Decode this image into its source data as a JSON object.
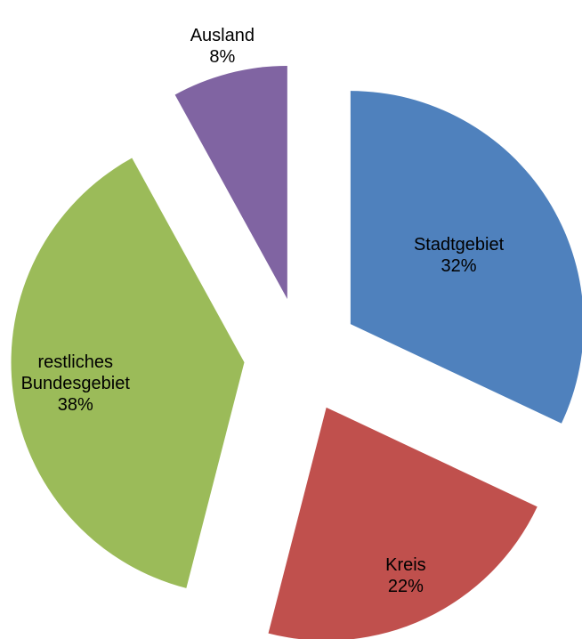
{
  "chart_data": {
    "type": "pie",
    "categories": [
      "Stadtgebiet",
      "Kreis",
      "restliches Bundesgebiet",
      "Ausland"
    ],
    "values": [
      32,
      22,
      38,
      8
    ],
    "value_labels": [
      "32%",
      "22%",
      "38%",
      "8%"
    ],
    "colors": [
      "#4f81bd",
      "#c0504d",
      "#9bbb59",
      "#8064a2"
    ],
    "exploded": true
  }
}
